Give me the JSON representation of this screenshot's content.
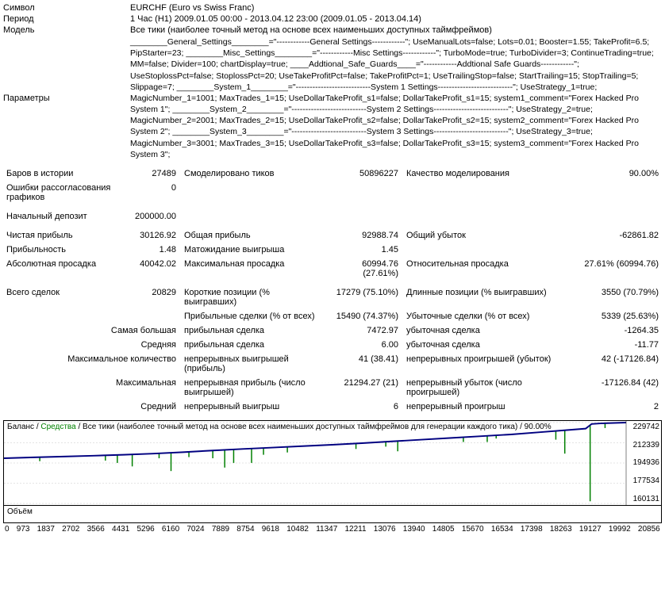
{
  "header": {
    "symbol_label": "Символ",
    "symbol_value": "EURCHF (Euro vs Swiss Franc)",
    "period_label": "Период",
    "period_value": "1 Час (H1) 2009.01.05 00:00 - 2013.04.12 23:00 (2009.01.05 - 2013.04.14)",
    "model_label": "Модель",
    "model_value": "Все тики (наиболее точный метод на основе всех наименьших доступных таймфреймов)",
    "params_label": "Параметры",
    "params_value": "________General_Settings________=\"------------General Settings------------\"; UseManualLots=false; Lots=0.01; Booster=1.55; TakeProfit=6.5; PipStarter=23; ________Misc_Settings________=\"------------Misc Settings------------\"; TurboMode=true; TurboDivider=3; ContinueTrading=true; MM=false; Divider=100; chartDisplay=true; ____Addtional_Safe_Guards____=\"------------Addtional Safe Guards------------\"; UseStoplossPct=false; StoplossPct=20; UseTakeProfitPct=false; TakeProfitPct=1; UseTrailingStop=false; StartTrailing=15; StopTrailing=5; Slippage=7; ________System_1________=\"---------------------------System 1 Settings---------------------------\"; UseStrategy_1=true; MagicNumber_1=1001; MaxTrades_1=15; UseDollarTakeProfit_s1=false; DollarTakeProfit_s1=15; system1_comment=\"Forex Hacked Pro System 1\"; ________System_2________=\"---------------------------System 2 Settings---------------------------\"; UseStrategy_2=true; MagicNumber_2=2001; MaxTrades_2=15; UseDollarTakeProfit_s2=false; DollarTakeProfit_s2=15; system2_comment=\"Forex Hacked Pro System 2\"; ________System_3________=\"---------------------------System 3 Settings---------------------------\"; UseStrategy_3=true; MagicNumber_3=3001; MaxTrades_3=15; UseDollarTakeProfit_s3=false; DollarTakeProfit_s3=15; system3_comment=\"Forex Hacked Pro System 3\";"
  },
  "stats": {
    "bars_label": "Баров в истории",
    "bars_value": "27489",
    "ticks_label": "Смоделировано тиков",
    "ticks_value": "50896227",
    "quality_label": "Качество моделирования",
    "quality_value": "90.00%",
    "errors_label": "Ошибки рассогласования графиков",
    "errors_value": "0",
    "deposit_label": "Начальный депозит",
    "deposit_value": "200000.00",
    "netprofit_label": "Чистая прибыль",
    "netprofit_value": "30126.92",
    "grossprofit_label": "Общая прибыль",
    "grossprofit_value": "92988.74",
    "grossloss_label": "Общий убыток",
    "grossloss_value": "-62861.82",
    "profitfactor_label": "Прибыльность",
    "profitfactor_value": "1.48",
    "expected_label": "Матожидание выигрыша",
    "expected_value": "1.45",
    "absdd_label": "Абсолютная просадка",
    "absdd_value": "40042.02",
    "maxdd_label": "Максимальная просадка",
    "maxdd_value": "60994.76 (27.61%)",
    "reldd_label": "Относительная просадка",
    "reldd_value": "27.61% (60994.76)",
    "total_label": "Всего сделок",
    "total_value": "20829",
    "short_label": "Короткие позиции (% выигравших)",
    "short_value": "17279 (75.10%)",
    "long_label": "Длинные позиции (% выигравших)",
    "long_value": "3550 (70.79%)",
    "proftrades_label": "Прибыльные сделки (% от всех)",
    "proftrades_value": "15490 (74.37%)",
    "losstrades_label": "Убыточные сделки (% от всех)",
    "losstrades_value": "5339 (25.63%)",
    "largest_label": "Самая большая",
    "largest_profit_label": "прибыльная сделка",
    "largest_profit_value": "7472.97",
    "largest_loss_label": "убыточная сделка",
    "largest_loss_value": "-1264.35",
    "avg_label": "Средняя",
    "avg_profit_label": "прибыльная сделка",
    "avg_profit_value": "6.00",
    "avg_loss_label": "убыточная сделка",
    "avg_loss_value": "-11.77",
    "maxcons_label": "Максимальное количество",
    "maxcons_wins_label": "непрерывных выигрышей (прибыль)",
    "maxcons_wins_value": "41 (38.41)",
    "maxcons_losses_label": "непрерывных проигрышей (убыток)",
    "maxcons_losses_value": "42 (-17126.84)",
    "maximal_label": "Максимальная",
    "maximal_profit_label": "непрерывная прибыль (число выигрышей)",
    "maximal_profit_value": "21294.27 (21)",
    "maximal_loss_label": "непрерывный убыток (число проигрышей)",
    "maximal_loss_value": "-17126.84 (42)",
    "avgcons_label": "Средний",
    "avgcons_wins_label": "непрерывный выигрыш",
    "avgcons_wins_value": "6",
    "avgcons_losses_label": "непрерывный проигрыш",
    "avgcons_losses_value": "2"
  },
  "chart": {
    "balance_label": "Баланс",
    "equity_label": "Средства",
    "caption_tail": "Все тики (наиболее точный метод на основе всех наименьших доступных таймфреймов для генерации каждого тика) / 90.00%",
    "volume_label": "Объём",
    "y_ticks": [
      "229742",
      "212339",
      "194936",
      "177534",
      "160131"
    ],
    "x_ticks": [
      "0",
      "973",
      "1837",
      "2702",
      "3566",
      "4431",
      "5296",
      "6160",
      "7024",
      "7889",
      "8754",
      "9618",
      "10482",
      "11347",
      "12211",
      "13076",
      "13940",
      "14805",
      "15670",
      "16534",
      "17398",
      "18263",
      "19127",
      "19992",
      "20856"
    ],
    "y_min": 160131,
    "y_max": 229742,
    "balance_series": [
      [
        0,
        199000
      ],
      [
        1000,
        199800
      ],
      [
        2000,
        200500
      ],
      [
        3000,
        201200
      ],
      [
        4000,
        202000
      ],
      [
        5000,
        203000
      ],
      [
        6000,
        204200
      ],
      [
        7000,
        205700
      ],
      [
        8000,
        207000
      ],
      [
        9000,
        208200
      ],
      [
        10000,
        209400
      ],
      [
        11000,
        210600
      ],
      [
        12000,
        212000
      ],
      [
        13000,
        213500
      ],
      [
        14000,
        215000
      ],
      [
        15000,
        216500
      ],
      [
        16000,
        218000
      ],
      [
        17000,
        219500
      ],
      [
        18000,
        221500
      ],
      [
        19000,
        223500
      ],
      [
        19500,
        224500
      ],
      [
        19700,
        228500
      ],
      [
        20000,
        229000
      ],
      [
        20856,
        229742
      ]
    ],
    "equity_drops": [
      {
        "x": 1200,
        "low": 196500
      },
      {
        "x": 3400,
        "low": 197000
      },
      {
        "x": 3800,
        "low": 195000
      },
      {
        "x": 4300,
        "low": 192000
      },
      {
        "x": 5200,
        "low": 199000
      },
      {
        "x": 5600,
        "low": 188000
      },
      {
        "x": 6200,
        "low": 200000
      },
      {
        "x": 7000,
        "low": 199000
      },
      {
        "x": 7400,
        "low": 191000
      },
      {
        "x": 7700,
        "low": 195000
      },
      {
        "x": 8300,
        "low": 195000
      },
      {
        "x": 8700,
        "low": 202000
      },
      {
        "x": 9500,
        "low": 204000
      },
      {
        "x": 11800,
        "low": 207000
      },
      {
        "x": 12800,
        "low": 209000
      },
      {
        "x": 13200,
        "low": 205000
      },
      {
        "x": 15400,
        "low": 213000
      },
      {
        "x": 16200,
        "low": 213000
      },
      {
        "x": 16500,
        "low": 216000
      },
      {
        "x": 18500,
        "low": 215000
      },
      {
        "x": 18800,
        "low": 203000
      },
      {
        "x": 19650,
        "low": 162000
      },
      {
        "x": 20150,
        "low": 225000
      }
    ],
    "colors": {
      "balance": "#000080",
      "equity": "#008000",
      "grid": "#c8c8c8",
      "bg": "#ffffff"
    }
  }
}
